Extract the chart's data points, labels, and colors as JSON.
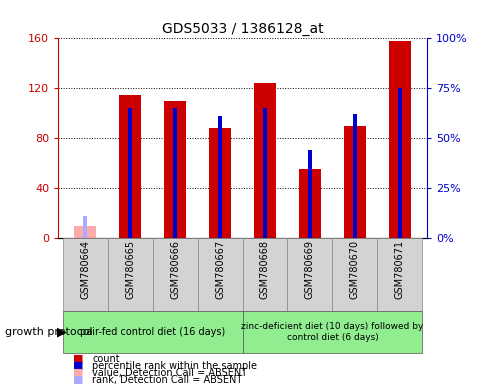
{
  "title": "GDS5033 / 1386128_at",
  "samples": [
    "GSM780664",
    "GSM780665",
    "GSM780666",
    "GSM780667",
    "GSM780668",
    "GSM780669",
    "GSM780670",
    "GSM780671"
  ],
  "count_values": [
    10,
    115,
    110,
    88,
    124,
    55,
    90,
    158
  ],
  "rank_values": [
    11,
    65,
    65,
    61,
    65,
    44,
    62,
    75
  ],
  "absent_flags": [
    true,
    false,
    false,
    false,
    false,
    false,
    false,
    false
  ],
  "count_color": "#cc0000",
  "rank_color": "#0000cc",
  "absent_count_color": "#ffaaaa",
  "absent_rank_color": "#aaaaff",
  "group1_n": 4,
  "group2_n": 4,
  "group1_label": "pair-fed control diet (16 days)",
  "group2_label": "zinc-deficient diet (10 days) followed by\ncontrol diet (6 days)",
  "protocol_label": "growth protocol",
  "ylim_left": [
    0,
    160
  ],
  "ylim_right": [
    0,
    100
  ],
  "yticks_left": [
    0,
    40,
    80,
    120,
    160
  ],
  "yticks_right": [
    0,
    25,
    50,
    75,
    100
  ],
  "ytick_labels_left": [
    "0",
    "40",
    "80",
    "120",
    "160"
  ],
  "ytick_labels_right": [
    "0%",
    "25%",
    "50%",
    "75%",
    "100%"
  ],
  "bar_width": 0.5,
  "rank_bar_width": 0.08
}
